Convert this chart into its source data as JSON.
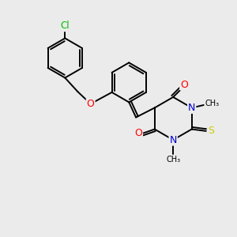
{
  "background_color": "#ebebeb",
  "bond_color": "#000000",
  "atom_colors": {
    "C": "#000000",
    "N": "#0000cc",
    "O": "#ff0000",
    "S": "#cccc00",
    "Cl": "#00bb00"
  },
  "figsize": [
    3.0,
    3.0
  ],
  "dpi": 100,
  "lw": 1.4,
  "fontsize": 9
}
